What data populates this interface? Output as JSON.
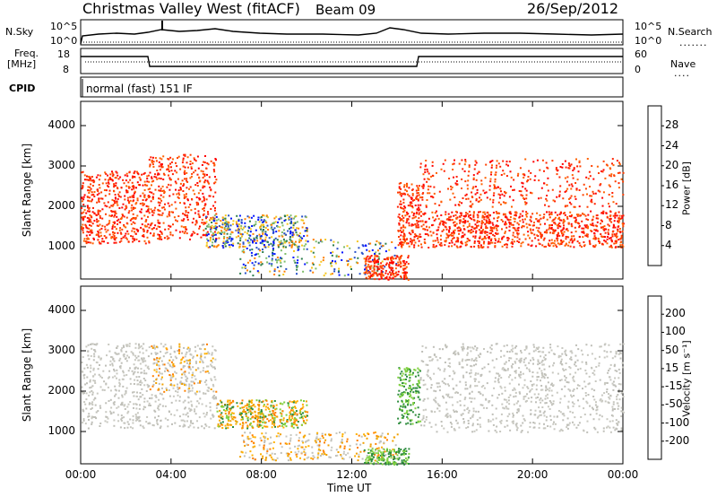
{
  "header": {
    "title": "Christmas Valley West (fitACF)",
    "beam": "Beam 09",
    "date": "26/Sep/2012"
  },
  "mini_panels": {
    "nsky_label": "N.Sky",
    "nsearch_label": "N.Search",
    "nsky_ticks": [
      "10^5",
      "10^0"
    ],
    "freq_label_1": "Freq.",
    "freq_label_2": "[MHz]",
    "freq_ticks": [
      "18",
      "8"
    ],
    "nave_label": "Nave",
    "nave_ticks": [
      "60",
      "0"
    ],
    "cpid_label": "CPID",
    "cpid_value": "normal (fast) 151 IF"
  },
  "chart_data": [
    {
      "type": "heatmap",
      "title": "",
      "ylabel": "Slant Range [km]",
      "xlabel": "",
      "x_ticks": [
        "00:00",
        "04:00",
        "08:00",
        "12:00",
        "16:00",
        "20:00",
        "00:00"
      ],
      "y_ticks": [
        1000,
        2000,
        3000,
        4000
      ],
      "ylim": [
        200,
        4600
      ],
      "colorbar": {
        "label": "Power [dB]",
        "ticks": [
          "4",
          "8",
          "12",
          "16",
          "20",
          "24",
          "28"
        ],
        "colors": [
          "#0014ff",
          "#2850c8",
          "#2c7d4b",
          "#7fbd6a",
          "#f6c61e",
          "#ff8000",
          "#ff4000",
          "#ff0000"
        ]
      }
    },
    {
      "type": "heatmap",
      "title": "",
      "ylabel": "Slant Range [km]",
      "xlabel": "Time UT",
      "x_ticks": [
        "00:00",
        "04:00",
        "08:00",
        "12:00",
        "16:00",
        "20:00",
        "00:00"
      ],
      "y_ticks": [
        1000,
        2000,
        3000,
        4000
      ],
      "ylim": [
        200,
        4600
      ],
      "colorbar": {
        "label": "Velocity [m s⁻¹]",
        "ticks": [
          "200",
          "100",
          "50",
          "15",
          "-15",
          "-50",
          "-100",
          "-200"
        ],
        "colors": [
          "#1428c8",
          "#2c7d4b",
          "#2c8c3c",
          "#7fd040",
          "#c8c8c0",
          "#f0a000",
          "#ff8000",
          "#ff4000",
          "#ff0000"
        ]
      }
    }
  ]
}
